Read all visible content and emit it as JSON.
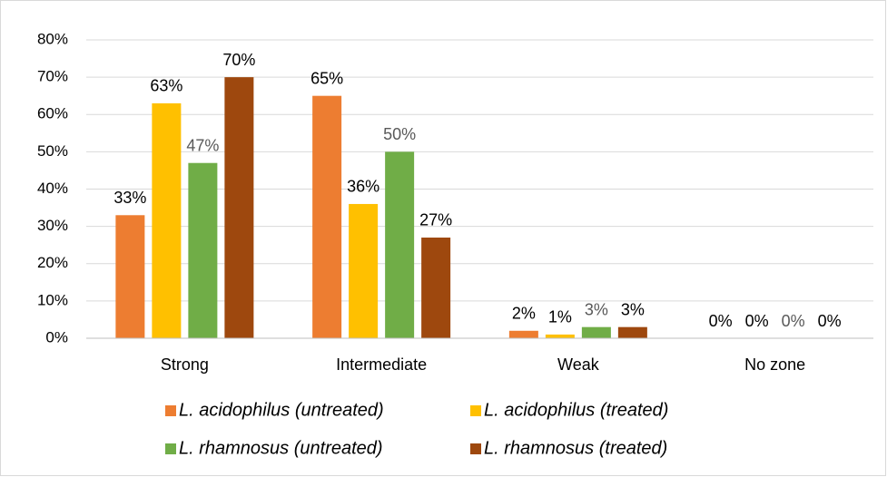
{
  "chart_data": {
    "type": "bar",
    "categories": [
      "Strong",
      "Intermediate",
      "Weak",
      "No zone"
    ],
    "series": [
      {
        "name": "L. acidophilus (untreated)",
        "color": "#ed7d31",
        "values": [
          33,
          65,
          2,
          0
        ],
        "value_labels": [
          "33%",
          "65%",
          "2%",
          "0%"
        ]
      },
      {
        "name": "L. acidophilus (treated)",
        "color": "#ffc000",
        "values": [
          63,
          36,
          1,
          0
        ],
        "value_labels": [
          "63%",
          "36%",
          "1%",
          "0%"
        ]
      },
      {
        "name": "L. rhamnosus (untreated)",
        "color": "#70ad47",
        "values": [
          47,
          50,
          3,
          0
        ],
        "value_labels": [
          "47%",
          "50%",
          "3%",
          "0%"
        ]
      },
      {
        "name": "L. rhamnosus (treated)",
        "color": "#9e480e",
        "values": [
          70,
          27,
          3,
          0
        ],
        "value_labels": [
          "70%",
          "27%",
          "3%",
          "0%"
        ]
      }
    ],
    "ylim": [
      0,
      80
    ],
    "yticks": [
      {
        "value": 0,
        "label": "0%"
      },
      {
        "value": 10,
        "label": "10%"
      },
      {
        "value": 20,
        "label": "20%"
      },
      {
        "value": 30,
        "label": "30%"
      },
      {
        "value": 40,
        "label": "40%"
      },
      {
        "value": 50,
        "label": "50%"
      },
      {
        "value": 60,
        "label": "60%"
      },
      {
        "value": 70,
        "label": "70%"
      },
      {
        "value": 80,
        "label": "80%"
      }
    ],
    "grid": true,
    "legend": "bottom"
  }
}
